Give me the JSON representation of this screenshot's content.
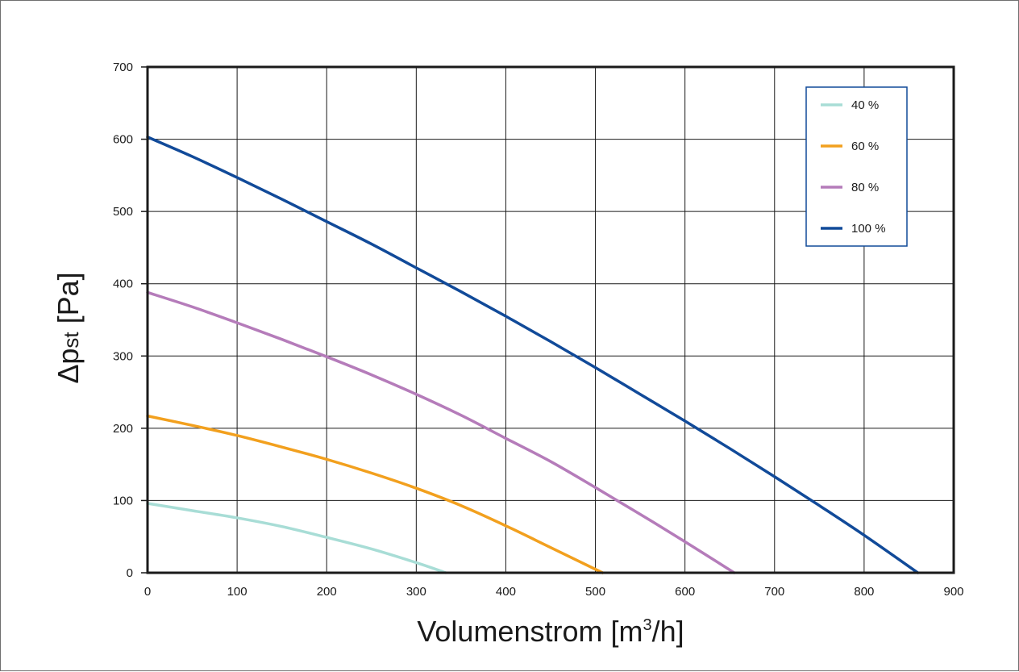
{
  "chart_data": {
    "type": "line",
    "xlabel": "Volumenstrom [m³/h]",
    "xlabel_main": "Volumenstrom [m",
    "xlabel_sup": "3",
    "xlabel_tail": "/h]",
    "ylabel": "Δpst [Pa]",
    "ylabel_main": "Δp",
    "ylabel_sub": "st",
    "ylabel_tail": " [Pa]",
    "xlim": [
      0,
      900
    ],
    "ylim": [
      0,
      700
    ],
    "x_ticks": [
      "0",
      "100",
      "200",
      "300",
      "400",
      "500",
      "600",
      "700",
      "800",
      "900"
    ],
    "y_ticks": [
      "0",
      "100",
      "200",
      "300",
      "400",
      "500",
      "600",
      "700"
    ],
    "grid": true,
    "legend_position": "top-right",
    "series": [
      {
        "name": "40 %",
        "color": "#a8ddd6",
        "points": [
          [
            0,
            96
          ],
          [
            50,
            86
          ],
          [
            100,
            76
          ],
          [
            150,
            64
          ],
          [
            200,
            49
          ],
          [
            250,
            33
          ],
          [
            300,
            14
          ],
          [
            333,
            0
          ]
        ]
      },
      {
        "name": "60 %",
        "color": "#f2a01e",
        "points": [
          [
            0,
            217
          ],
          [
            50,
            204
          ],
          [
            100,
            190
          ],
          [
            150,
            174
          ],
          [
            200,
            157
          ],
          [
            250,
            138
          ],
          [
            300,
            117
          ],
          [
            350,
            93
          ],
          [
            400,
            65
          ],
          [
            450,
            35
          ],
          [
            508,
            0
          ]
        ]
      },
      {
        "name": "80 %",
        "color": "#b57cba",
        "points": [
          [
            0,
            388
          ],
          [
            50,
            368
          ],
          [
            100,
            346
          ],
          [
            150,
            323
          ],
          [
            200,
            299
          ],
          [
            250,
            274
          ],
          [
            300,
            247
          ],
          [
            350,
            218
          ],
          [
            400,
            186
          ],
          [
            450,
            154
          ],
          [
            500,
            118
          ],
          [
            550,
            81
          ],
          [
            600,
            43
          ],
          [
            655,
            0
          ]
        ]
      },
      {
        "name": "100 %",
        "color": "#114a99",
        "points": [
          [
            0,
            603
          ],
          [
            50,
            576
          ],
          [
            100,
            547
          ],
          [
            150,
            517
          ],
          [
            200,
            486
          ],
          [
            250,
            455
          ],
          [
            300,
            422
          ],
          [
            350,
            389
          ],
          [
            400,
            355
          ],
          [
            450,
            320
          ],
          [
            500,
            284
          ],
          [
            550,
            247
          ],
          [
            600,
            210
          ],
          [
            650,
            172
          ],
          [
            700,
            133
          ],
          [
            750,
            93
          ],
          [
            800,
            52
          ],
          [
            860,
            0
          ]
        ]
      }
    ]
  }
}
